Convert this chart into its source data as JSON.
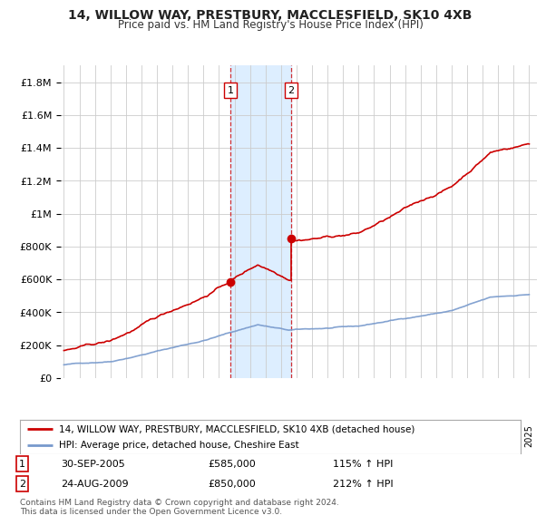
{
  "title": "14, WILLOW WAY, PRESTBURY, MACCLESFIELD, SK10 4XB",
  "subtitle": "Price paid vs. HM Land Registry's House Price Index (HPI)",
  "ylim": [
    0,
    1900000
  ],
  "yticks": [
    0,
    200000,
    400000,
    600000,
    800000,
    1000000,
    1200000,
    1400000,
    1600000,
    1800000
  ],
  "ytick_labels": [
    "£0",
    "£200K",
    "£400K",
    "£600K",
    "£800K",
    "£1M",
    "£1.2M",
    "£1.4M",
    "£1.6M",
    "£1.8M"
  ],
  "hpi_color": "#7799cc",
  "price_color": "#cc0000",
  "shaded_color": "#ddeeff",
  "vline_color": "#cc0000",
  "sale1_year": 2005.75,
  "sale1_price": 585000,
  "sale1_label": "1",
  "sale2_year": 2009.65,
  "sale2_price": 850000,
  "sale2_label": "2",
  "legend_property": "14, WILLOW WAY, PRESTBURY, MACCLESFIELD, SK10 4XB (detached house)",
  "legend_hpi": "HPI: Average price, detached house, Cheshire East",
  "table_row1": [
    "1",
    "30-SEP-2005",
    "£585,000",
    "115% ↑ HPI"
  ],
  "table_row2": [
    "2",
    "24-AUG-2009",
    "£850,000",
    "212% ↑ HPI"
  ],
  "footnote": "Contains HM Land Registry data © Crown copyright and database right 2024.\nThis data is licensed under the Open Government Licence v3.0.",
  "background_color": "#ffffff",
  "grid_color": "#cccccc"
}
